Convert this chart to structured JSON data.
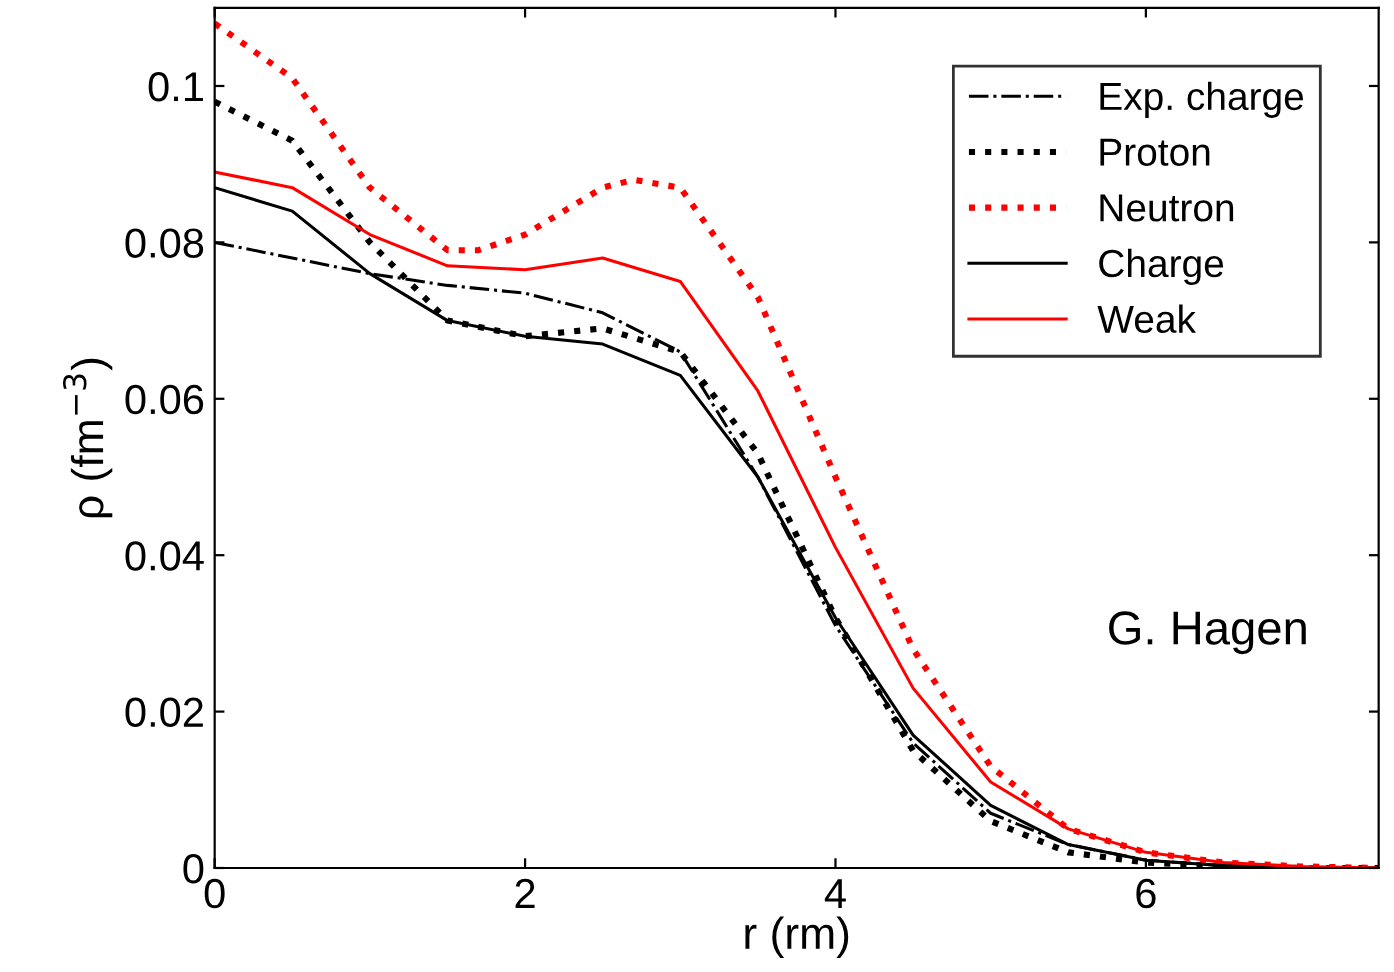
{
  "chart_data": {
    "type": "line",
    "xlabel": "r (rm)",
    "ylabel": "ρ (fm$^{−3}$)",
    "xlim": [
      0,
      7.5
    ],
    "ylim": [
      0,
      0.11
    ],
    "xticks": [
      0,
      2,
      4,
      6
    ],
    "yticks": [
      0,
      0.02,
      0.04,
      0.06,
      0.08,
      0.1
    ],
    "legend": "top right",
    "grid": false,
    "annotations": [
      "G. Hagen"
    ],
    "series": [
      {
        "name": "Exp. charge",
        "color": "#000000",
        "line_style": "dashdot",
        "x": [
          0,
          0.5,
          1,
          1.5,
          2,
          2.5,
          3,
          3.5,
          4,
          4.5,
          5,
          5.5,
          6,
          6.5,
          7,
          7.5
        ],
        "values": [
          0.08,
          0.078,
          0.076,
          0.0745,
          0.0735,
          0.071,
          0.066,
          0.05,
          0.031,
          0.016,
          0.007,
          0.003,
          0.001,
          0.0003,
          0,
          0
        ]
      },
      {
        "name": "Proton",
        "color": "#000000",
        "line_style": "dotted",
        "x": [
          0,
          0.5,
          1,
          1.5,
          2,
          2.5,
          3,
          3.5,
          4,
          4.5,
          5,
          5.5,
          6,
          6.5,
          7,
          7.5
        ],
        "values": [
          0.098,
          0.093,
          0.08,
          0.07,
          0.068,
          0.069,
          0.066,
          0.053,
          0.032,
          0.015,
          0.006,
          0.002,
          0.0007,
          0.0002,
          0,
          0
        ]
      },
      {
        "name": "Neutron",
        "color": "#ff0000",
        "line_style": "dotted",
        "x": [
          0,
          0.5,
          1,
          1.5,
          1.7,
          2,
          2.5,
          2.7,
          3,
          3.5,
          4,
          4.5,
          5,
          5.5,
          6,
          6.5,
          7,
          7.5
        ],
        "values": [
          0.108,
          0.101,
          0.087,
          0.079,
          0.079,
          0.081,
          0.087,
          0.088,
          0.087,
          0.073,
          0.05,
          0.028,
          0.013,
          0.005,
          0.002,
          0.0007,
          0.0002,
          0
        ]
      },
      {
        "name": "Charge",
        "color": "#000000",
        "line_style": "solid",
        "x": [
          0,
          0.5,
          1,
          1.5,
          2,
          2.5,
          3,
          3.5,
          4,
          4.5,
          5,
          5.5,
          6,
          6.5,
          7,
          7.5
        ],
        "values": [
          0.087,
          0.084,
          0.076,
          0.07,
          0.068,
          0.067,
          0.063,
          0.05,
          0.032,
          0.017,
          0.008,
          0.003,
          0.001,
          0.0003,
          0,
          0
        ]
      },
      {
        "name": "Weak",
        "color": "#ff0000",
        "line_style": "solid",
        "x": [
          0,
          0.5,
          1,
          1.5,
          2,
          2.5,
          3,
          3.5,
          4,
          4.5,
          5,
          5.5,
          6,
          6.5,
          7,
          7.5
        ],
        "values": [
          0.089,
          0.087,
          0.081,
          0.077,
          0.0765,
          0.078,
          0.075,
          0.061,
          0.041,
          0.023,
          0.011,
          0.005,
          0.002,
          0.0007,
          0.0002,
          0
        ]
      }
    ]
  }
}
